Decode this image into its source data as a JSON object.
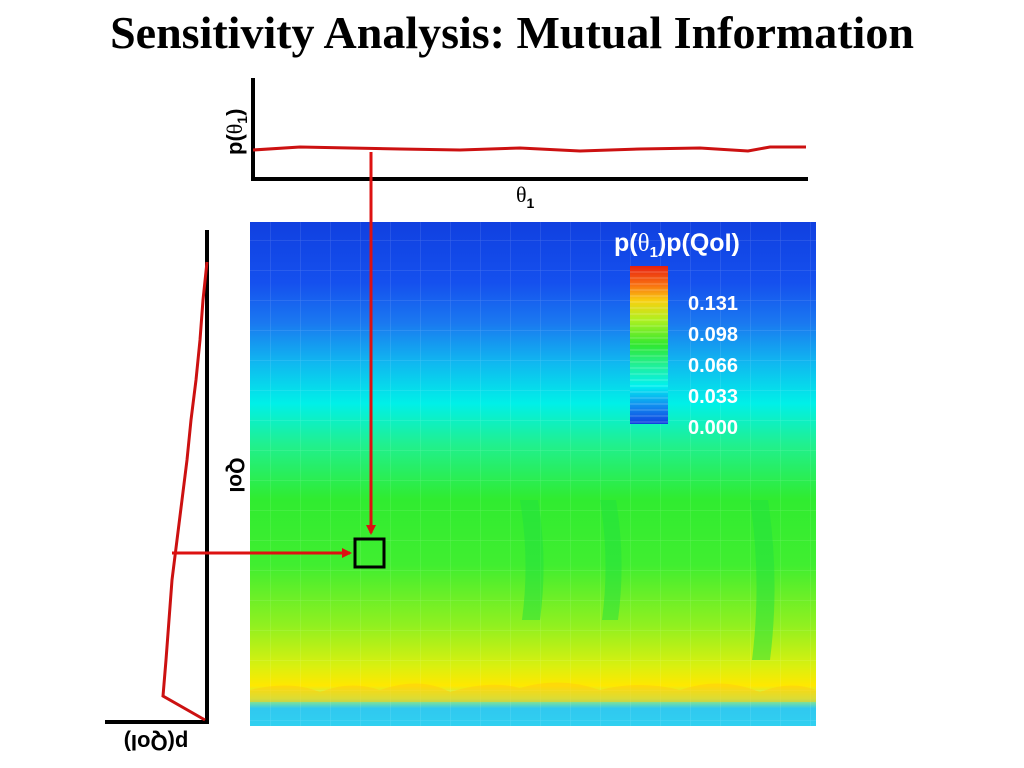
{
  "title": "Sensitivity Analysis: Mutual Information",
  "top_plot": {
    "ylabel_main": "p(",
    "ylabel_symbol": "θ",
    "ylabel_sub": "1",
    "ylabel_close": ")",
    "xlabel_symbol": "θ",
    "xlabel_sub": "1"
  },
  "left_plot": {
    "ylabel": "QoI",
    "xlabel": "p(QoI)"
  },
  "heatmap": {
    "colorbar_title": {
      "prefix": "p(",
      "symbol": "θ",
      "sub": "1",
      "suffix": ")p(QoI)"
    },
    "colorbar_ticks": [
      "0.131",
      "0.098",
      "0.066",
      "0.033",
      "0.000"
    ]
  },
  "colors": {
    "curve": "#cc1111",
    "arrow": "#dd1111",
    "axis": "#000000",
    "selection_box": "#000000"
  }
}
